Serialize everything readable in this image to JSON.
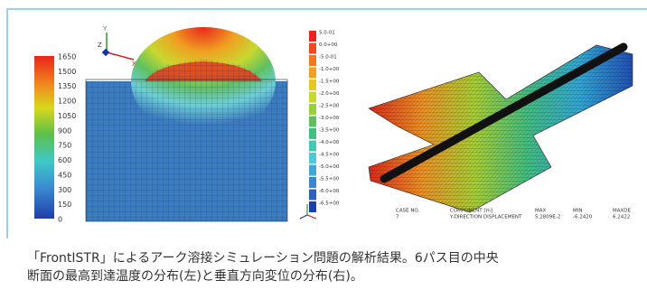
{
  "left_figure": {
    "axis_labels": [
      "Y",
      "Z",
      "X"
    ],
    "colorbar_labels": [
      "1650",
      "1500",
      "1350",
      "1200",
      "1050",
      "900",
      "750",
      "600",
      "450",
      "300",
      "150",
      "0"
    ]
  },
  "right_figure": {
    "legend_labels": [
      "5.0-01",
      "0.0+00",
      "-5.0-01",
      "-1.0+00",
      "-1.5+00",
      "-2.0+00",
      "-2.5+00",
      "-3.0+00",
      "-3.5+00",
      "-4.0+00",
      "-4.5+00",
      "-5.0+00",
      "-5.5+00",
      "-6.0+00",
      "-6.5+00"
    ],
    "info": [
      {
        "heading": "CASE NO.",
        "value": "7"
      },
      {
        "heading": "COMPONENT [m]",
        "value": "Y-DIRECTION DISPLACEMENT"
      },
      {
        "heading": "MAX",
        "value": "5.2809E-2"
      },
      {
        "heading": "MIN",
        "value": "-6.2420"
      },
      {
        "heading": "MAXDE",
        "value": "6.2422"
      }
    ]
  },
  "caption": [
    "「FrontISTR」によるアーク溶接シミュレーション問題の解析結果。6パス目の中央",
    "断面の最高到達温度の分布(左)と垂直方向変位の分布(右)。"
  ]
}
